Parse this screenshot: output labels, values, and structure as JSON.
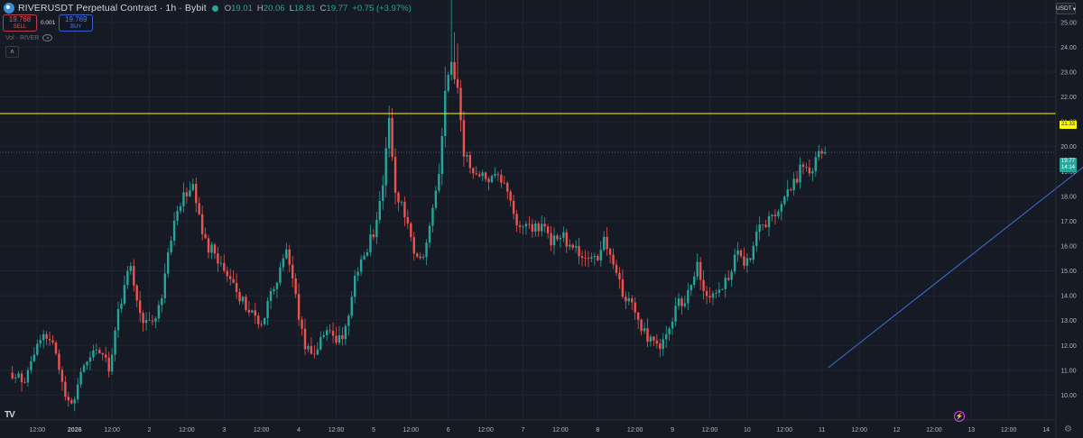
{
  "header": {
    "title": "RIVERUSDT Perpetual Contract · 1h · Bybit",
    "ohlc": [
      {
        "key": "O",
        "value": "19.01"
      },
      {
        "key": "H",
        "value": "20.06"
      },
      {
        "key": "L",
        "value": "18.81"
      },
      {
        "key": "C",
        "value": "19.77"
      },
      {
        "key": "",
        "value": "+0.75 (+3.97%)"
      }
    ]
  },
  "trade": {
    "sell_price": "19.768",
    "sell_label": "SELL",
    "spread": "0.001",
    "buy_price": "19.769",
    "buy_label": "BUY"
  },
  "indicator": {
    "label": "Vol · RIVER"
  },
  "currency": "USDT",
  "price_tags": {
    "level": "21.33",
    "last_price": "19.77",
    "countdown": "14:14"
  },
  "colors": {
    "bg": "#161a25",
    "up": "#26a69a",
    "down": "#ef5350",
    "level_line": "#ffff00",
    "trendline": "#3d6fd8",
    "grid": "#1f2430",
    "axis_text": "#b2b5be"
  },
  "icons": {
    "logo": "tradingview-logo-icon",
    "alert": "lightning-icon",
    "settings": "gear-icon",
    "eye": "eye-icon"
  },
  "chart_data": {
    "type": "candlestick",
    "interval": "1h",
    "ylim": [
      9.0,
      25.9
    ],
    "y_ticks": [
      "10.00",
      "11.00",
      "12.00",
      "13.00",
      "14.00",
      "15.00",
      "16.00",
      "17.00",
      "18.00",
      "19.00",
      "20.00",
      "21.00",
      "22.00",
      "23.00",
      "24.00",
      "25.00"
    ],
    "x_ticks": [
      "12:00",
      "2026",
      "12:00",
      "2",
      "12:00",
      "3",
      "12:00",
      "4",
      "12:00",
      "5",
      "12:00",
      "6",
      "12:00",
      "7",
      "12:00",
      "8",
      "12:00",
      "9",
      "12:00",
      "10",
      "12:00",
      "11",
      "12:00",
      "12",
      "12:00",
      "13",
      "12:00",
      "14"
    ],
    "x_tick_positions_bars": [
      -36,
      -24,
      -12,
      0,
      12,
      24,
      36,
      48,
      60,
      72,
      84,
      96,
      108,
      120,
      132,
      144,
      156,
      168,
      180,
      192,
      204,
      216,
      228,
      240,
      252,
      264,
      276,
      288
    ],
    "horizontal_level": 21.33,
    "trendline": {
      "from": {
        "bar_offset": 218,
        "price": 11.1
      },
      "to": {
        "bar_offset": 324,
        "price": 21.55
      }
    },
    "path_keypoints": [
      [
        -44,
        10.9
      ],
      [
        -40,
        10.4
      ],
      [
        -34,
        12.5
      ],
      [
        -30,
        11.8
      ],
      [
        -27,
        10.0
      ],
      [
        -24,
        9.8
      ],
      [
        -21,
        11.3
      ],
      [
        -17,
        11.7
      ],
      [
        -13,
        11.2
      ],
      [
        -10,
        13.2
      ],
      [
        -6,
        15.3
      ],
      [
        -3,
        13.3
      ],
      [
        0,
        12.8
      ],
      [
        3,
        13.5
      ],
      [
        8,
        16.8
      ],
      [
        11,
        18.1
      ],
      [
        14,
        18.5
      ],
      [
        16,
        17.1
      ],
      [
        18,
        16.1
      ],
      [
        22,
        15.5
      ],
      [
        26,
        14.6
      ],
      [
        29,
        13.9
      ],
      [
        33,
        13.4
      ],
      [
        36,
        12.8
      ],
      [
        41,
        14.7
      ],
      [
        44,
        16.0
      ],
      [
        46,
        14.5
      ],
      [
        49,
        12.4
      ],
      [
        52,
        11.5
      ],
      [
        56,
        12.4
      ],
      [
        60,
        12.3
      ],
      [
        63,
        12.6
      ],
      [
        66,
        14.6
      ],
      [
        69,
        15.6
      ],
      [
        73,
        16.8
      ],
      [
        75,
        18.5
      ],
      [
        77,
        21.2
      ],
      [
        79,
        18.2
      ],
      [
        82,
        17.3
      ],
      [
        85,
        15.8
      ],
      [
        88,
        15.3
      ],
      [
        90,
        16.6
      ],
      [
        93,
        18.8
      ],
      [
        95,
        22.0
      ],
      [
        97,
        23.5
      ],
      [
        99,
        22.4
      ],
      [
        101,
        19.6
      ],
      [
        104,
        19.0
      ],
      [
        108,
        18.7
      ],
      [
        112,
        18.9
      ],
      [
        115,
        18.3
      ],
      [
        118,
        17.0
      ],
      [
        122,
        16.7
      ],
      [
        126,
        16.9
      ],
      [
        129,
        16.1
      ],
      [
        133,
        16.3
      ],
      [
        137,
        15.8
      ],
      [
        141,
        15.4
      ],
      [
        144,
        15.5
      ],
      [
        146,
        16.5
      ],
      [
        149,
        15.4
      ],
      [
        152,
        14.2
      ],
      [
        155,
        13.6
      ],
      [
        158,
        12.6
      ],
      [
        162,
        12.1
      ],
      [
        164,
        11.7
      ],
      [
        166,
        12.4
      ],
      [
        169,
        13.5
      ],
      [
        173,
        14.1
      ],
      [
        176,
        15.3
      ],
      [
        178,
        14.1
      ],
      [
        181,
        14.0
      ],
      [
        185,
        14.6
      ],
      [
        189,
        15.8
      ],
      [
        192,
        15.3
      ],
      [
        195,
        16.5
      ],
      [
        198,
        17.0
      ],
      [
        202,
        17.4
      ],
      [
        206,
        18.3
      ],
      [
        210,
        19.3
      ],
      [
        212,
        18.9
      ],
      [
        215,
        19.6
      ],
      [
        217,
        19.77
      ]
    ]
  }
}
